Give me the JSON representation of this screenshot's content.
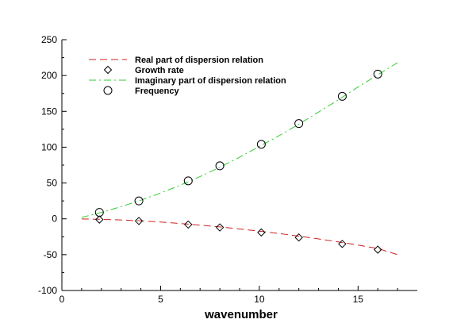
{
  "chart_data": {
    "type": "line",
    "title": "",
    "xlabel": "wavenumber",
    "ylabel": "",
    "xlim": [
      0,
      18
    ],
    "ylim": [
      -100,
      250
    ],
    "x_ticks": [
      0,
      5,
      10,
      15
    ],
    "y_ticks": [
      -100,
      -50,
      0,
      50,
      100,
      150,
      200,
      250
    ],
    "x_tick_labels": [
      "0",
      "5",
      "10",
      "15"
    ],
    "y_tick_labels": [
      "-100",
      "-50",
      "0",
      "50",
      "100",
      "150",
      "200",
      "250"
    ],
    "grid": false,
    "legend_position": "top-left",
    "series": [
      {
        "name": "Real part of dispersion relation",
        "kind": "line",
        "style": "dashed",
        "color": "#cc2222",
        "x": [
          1,
          2,
          3,
          4,
          5,
          6,
          7,
          8,
          9,
          10,
          11,
          12,
          13,
          14,
          15,
          16,
          17
        ],
        "y": [
          -0.2,
          -0.7,
          -1.6,
          -2.8,
          -4.5,
          -6.5,
          -8.8,
          -11.3,
          -14.1,
          -17.2,
          -20.5,
          -24.1,
          -28,
          -32.2,
          -36.6,
          -41.4,
          -50
        ]
      },
      {
        "name": "Growth rate",
        "kind": "marker",
        "marker": "diamond",
        "color": "#000000",
        "x": [
          1.9,
          3.9,
          6.4,
          8,
          10.1,
          12,
          14.2,
          16
        ],
        "y": [
          -1,
          -3,
          -8,
          -12,
          -19,
          -26,
          -35,
          -43
        ]
      },
      {
        "name": "Imaginary part of dispersion relation",
        "kind": "line",
        "style": "dashdot",
        "color": "#33cc33",
        "x": [
          1,
          2,
          3,
          4,
          5,
          6,
          7,
          8,
          9,
          10,
          11,
          12,
          13,
          14,
          15,
          16,
          17
        ],
        "y": [
          2,
          9,
          17,
          26,
          36,
          47,
          59,
          72,
          86,
          101,
          116,
          132,
          149,
          166,
          184,
          201,
          218
        ]
      },
      {
        "name": "Frequency",
        "kind": "marker",
        "marker": "circle",
        "color": "#000000",
        "x": [
          1.9,
          3.9,
          6.4,
          8,
          10.1,
          12,
          14.2,
          16
        ],
        "y": [
          9,
          25,
          53,
          74,
          104,
          133,
          171,
          202
        ]
      }
    ]
  }
}
